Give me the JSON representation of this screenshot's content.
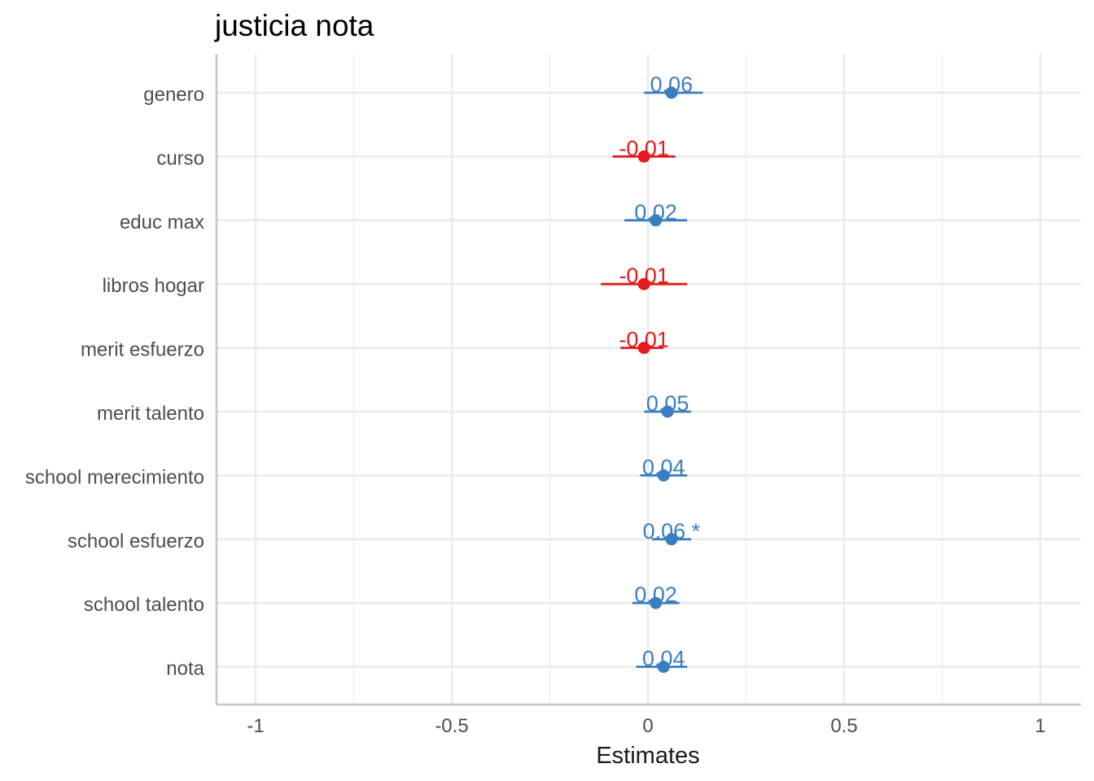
{
  "chart_data": {
    "type": "forest",
    "title": "justicia nota",
    "xlabel": "Estimates",
    "ylabel": "",
    "xlim": [
      -1.1,
      1.1
    ],
    "x_ticks": [
      -1,
      -0.5,
      0,
      0.5,
      1
    ],
    "x_tick_labels": [
      "-1",
      "-0.5",
      "0",
      "0.5",
      "1"
    ],
    "grid": true,
    "legend": "none",
    "colors": {
      "positive": "#3a7ebf",
      "negative": "#e41a1c",
      "grid": "#ebebeb",
      "axis": "#c8c8c8"
    },
    "terms": [
      {
        "label": "genero",
        "estimate": 0.06,
        "ci_low": -0.01,
        "ci_high": 0.14,
        "value_label": "0.06"
      },
      {
        "label": "curso",
        "estimate": -0.01,
        "ci_low": -0.09,
        "ci_high": 0.07,
        "value_label": "-0.01"
      },
      {
        "label": "educ max",
        "estimate": 0.02,
        "ci_low": -0.06,
        "ci_high": 0.1,
        "value_label": "0.02"
      },
      {
        "label": "libros hogar",
        "estimate": -0.01,
        "ci_low": -0.12,
        "ci_high": 0.1,
        "value_label": "-0.01"
      },
      {
        "label": "merit esfuerzo",
        "estimate": -0.01,
        "ci_low": -0.07,
        "ci_high": 0.04,
        "value_label": "-0.01"
      },
      {
        "label": "merit talento",
        "estimate": 0.05,
        "ci_low": -0.01,
        "ci_high": 0.11,
        "value_label": "0.05"
      },
      {
        "label": "school merecimiento",
        "estimate": 0.04,
        "ci_low": -0.02,
        "ci_high": 0.1,
        "value_label": "0.04"
      },
      {
        "label": "school esfuerzo",
        "estimate": 0.06,
        "ci_low": 0.01,
        "ci_high": 0.11,
        "value_label": "0.06 *"
      },
      {
        "label": "school talento",
        "estimate": 0.02,
        "ci_low": -0.04,
        "ci_high": 0.08,
        "value_label": "0.02"
      },
      {
        "label": "nota",
        "estimate": 0.04,
        "ci_low": -0.03,
        "ci_high": 0.1,
        "value_label": "0.04"
      }
    ]
  }
}
